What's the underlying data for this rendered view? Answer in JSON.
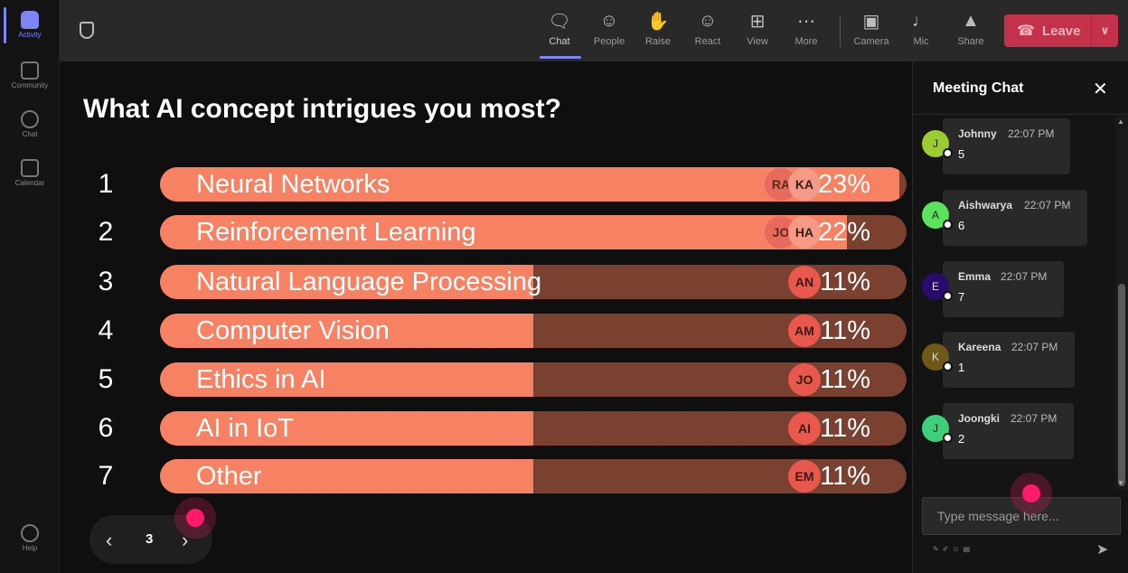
{
  "rail": {
    "items": [
      {
        "label": "Activity"
      },
      {
        "label": "Community"
      },
      {
        "label": "Chat"
      },
      {
        "label": "Calendar"
      },
      {
        "label": "Help"
      }
    ]
  },
  "toolbar": {
    "chat": "Chat",
    "people": "People",
    "raise": "Raise",
    "react": "React",
    "view": "View",
    "more": "More",
    "camera": "Camera",
    "mic": "Mic",
    "share": "Share",
    "leave": "Leave"
  },
  "poll": {
    "question": "What AI concept intrigues you most?",
    "options": [
      {
        "num": "1",
        "label": "Neural Networks",
        "pct": "23%",
        "fill": 0.99,
        "avatars": [
          "RA",
          "KA"
        ]
      },
      {
        "num": "2",
        "label": "Reinforcement Learning",
        "pct": "22%",
        "fill": 0.92,
        "avatars": [
          "JO",
          "HA"
        ]
      },
      {
        "num": "3",
        "label": "Natural Language Processing",
        "pct": "11%",
        "fill": 0.5,
        "avatars": [
          "AN"
        ]
      },
      {
        "num": "4",
        "label": "Computer Vision",
        "pct": "11%",
        "fill": 0.5,
        "avatars": [
          "AM"
        ]
      },
      {
        "num": "5",
        "label": "Ethics in AI",
        "pct": "11%",
        "fill": 0.5,
        "avatars": [
          "JO"
        ]
      },
      {
        "num": "6",
        "label": "AI in IoT",
        "pct": "11%",
        "fill": 0.5,
        "avatars": [
          "AI"
        ]
      },
      {
        "num": "7",
        "label": "Other",
        "pct": "11%",
        "fill": 0.5,
        "avatars": [
          "EM"
        ]
      }
    ],
    "page": "3"
  },
  "chat": {
    "title": "Meeting Chat",
    "messages": [
      {
        "initial": "J",
        "name": "Johnny",
        "time": "22:07 PM",
        "text": "5",
        "color": "#9acd32"
      },
      {
        "initial": "A",
        "name": "Aishwarya",
        "time": "22:07 PM",
        "text": "6",
        "color": "#5ce35c"
      },
      {
        "initial": "E",
        "name": "Emma",
        "time": "22:07 PM",
        "text": "7",
        "color": "#2a0a6e"
      },
      {
        "initial": "K",
        "name": "Kareena",
        "time": "22:07 PM",
        "text": "1",
        "color": "#6e5a16"
      },
      {
        "initial": "J",
        "name": "Joongki",
        "time": "22:07 PM",
        "text": "2",
        "color": "#3ecf7a"
      }
    ],
    "input_placeholder": "Type message here..."
  }
}
